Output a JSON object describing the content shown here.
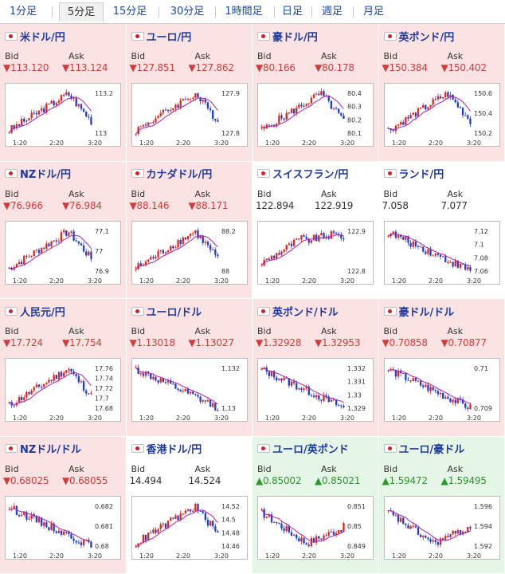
{
  "tabs": [
    "1分足",
    "5分足",
    "15分足",
    "30分足",
    "1時間足",
    "日足",
    "週足",
    "月足"
  ],
  "active_tab": "5分足",
  "xlabels": [
    "1:20",
    "2:20",
    "3:20"
  ],
  "colors": {
    "up_candle": "#e3261d",
    "down_candle": "#1e3fd1",
    "ma_line": "#b020b0",
    "down_bg": "#fce3e3",
    "up_bg": "#e6f6e6",
    "neutral_bg": "#ffffff",
    "title": "#1d3a9f",
    "down_text": "#d33b3b",
    "up_text": "#2a9a2a"
  },
  "pairs": [
    {
      "name": "米ドル/円",
      "bid_label": "Bid",
      "ask_label": "Ask",
      "bid": "▼113.120",
      "ask": "▼113.124",
      "dir": "down",
      "flag": "us-flag-icon",
      "yticks": [
        "113.2",
        "113"
      ],
      "trend": "rise-peak"
    },
    {
      "name": "ユーロ/円",
      "bid_label": "Bid",
      "ask_label": "Ask",
      "bid": "▼127.851",
      "ask": "▼127.862",
      "dir": "down",
      "flag": "eu-flag-icon",
      "yticks": [
        "127.9",
        "127.8"
      ],
      "trend": "rise-peak"
    },
    {
      "name": "豪ドル/円",
      "bid_label": "Bid",
      "ask_label": "Ask",
      "bid": "▼80.166",
      "ask": "▼80.178",
      "dir": "down",
      "flag": "au-flag-icon",
      "yticks": [
        "80.4",
        "80.3",
        "80.2",
        "80.1"
      ],
      "trend": "rise-peak"
    },
    {
      "name": "英ポンド/円",
      "bid_label": "Bid",
      "ask_label": "Ask",
      "bid": "▼150.384",
      "ask": "▼150.402",
      "dir": "down",
      "flag": "gb-flag-icon",
      "yticks": [
        "150.6",
        "150.4",
        "150.2"
      ],
      "trend": "rise-peak"
    },
    {
      "name": "NZドル/円",
      "bid_label": "Bid",
      "ask_label": "Ask",
      "bid": "▼76.966",
      "ask": "▼76.984",
      "dir": "down",
      "flag": "nz-flag-icon",
      "yticks": [
        "77.1",
        "77",
        "76.9"
      ],
      "trend": "rise-peak"
    },
    {
      "name": "カナダドル/円",
      "bid_label": "Bid",
      "ask_label": "Ask",
      "bid": "▼88.146",
      "ask": "▼88.171",
      "dir": "down",
      "flag": "ca-flag-icon",
      "yticks": [
        "88.2",
        "88"
      ],
      "trend": "rise-peak"
    },
    {
      "name": "スイスフラン/円",
      "bid_label": "Bid",
      "ask_label": "Ask",
      "bid": "122.894",
      "ask": "122.919",
      "dir": "neutral",
      "flag": "ch-flag-icon",
      "yticks": [
        "122.9",
        "122.8"
      ],
      "trend": "rise-flat"
    },
    {
      "name": "ランド/円",
      "bid_label": "Bid",
      "ask_label": "Ask",
      "bid": "7.058",
      "ask": "7.077",
      "dir": "neutral",
      "flag": "za-flag-icon",
      "yticks": [
        "7.12",
        "7.1",
        "7.08",
        "7.06"
      ],
      "trend": "fall"
    },
    {
      "name": "人民元/円",
      "bid_label": "Bid",
      "ask_label": "Ask",
      "bid": "▼17.724",
      "ask": "▼17.754",
      "dir": "down",
      "flag": "cn-flag-icon",
      "yticks": [
        "17.76",
        "17.74",
        "17.72",
        "17.7",
        "17.68"
      ],
      "trend": "rise-peak"
    },
    {
      "name": "ユーロ/ドル",
      "bid_label": "Bid",
      "ask_label": "Ask",
      "bid": "▼1.13018",
      "ask": "▼1.13027",
      "dir": "down",
      "flag": "eu-flag-icon",
      "yticks": [
        "1.132",
        "1.13"
      ],
      "trend": "fall"
    },
    {
      "name": "英ポンド/ドル",
      "bid_label": "Bid",
      "ask_label": "Ask",
      "bid": "▼1.32928",
      "ask": "▼1.32953",
      "dir": "down",
      "flag": "gb-flag-icon",
      "yticks": [
        "1.332",
        "1.331",
        "1.33",
        "1.329"
      ],
      "trend": "fall"
    },
    {
      "name": "豪ドル/ドル",
      "bid_label": "Bid",
      "ask_label": "Ask",
      "bid": "▼0.70858",
      "ask": "▼0.70877",
      "dir": "down",
      "flag": "au-flag-icon",
      "yticks": [
        "0.71",
        "0.709"
      ],
      "trend": "fall"
    },
    {
      "name": "NZドル/ドル",
      "bid_label": "Bid",
      "ask_label": "Ask",
      "bid": "▼0.68025",
      "ask": "▼0.68055",
      "dir": "down",
      "flag": "nz-flag-icon",
      "yticks": [
        "0.682",
        "0.681",
        "0.68"
      ],
      "trend": "fall"
    },
    {
      "name": "香港ドル/円",
      "bid_label": "Bid",
      "ask_label": "Ask",
      "bid": "14.494",
      "ask": "14.524",
      "dir": "neutral",
      "flag": "hk-flag-icon",
      "yticks": [
        "14.52",
        "14.5",
        "14.48",
        "14.46"
      ],
      "trend": "rise-peak"
    },
    {
      "name": "ユーロ/英ポンド",
      "bid_label": "Bid",
      "ask_label": "Ask",
      "bid": "▲0.85002",
      "ask": "▲0.85021",
      "dir": "up",
      "flag": "eu-flag-icon",
      "yticks": [
        "0.851",
        "0.85",
        "0.849"
      ],
      "trend": "dip-recover"
    },
    {
      "name": "ユーロ/豪ドル",
      "bid_label": "Bid",
      "ask_label": "Ask",
      "bid": "▲1.59472",
      "ask": "▲1.59495",
      "dir": "up",
      "flag": "eu-flag-icon",
      "yticks": [
        "1.596",
        "1.594",
        "1.592"
      ],
      "trend": "dip-recover"
    }
  ]
}
